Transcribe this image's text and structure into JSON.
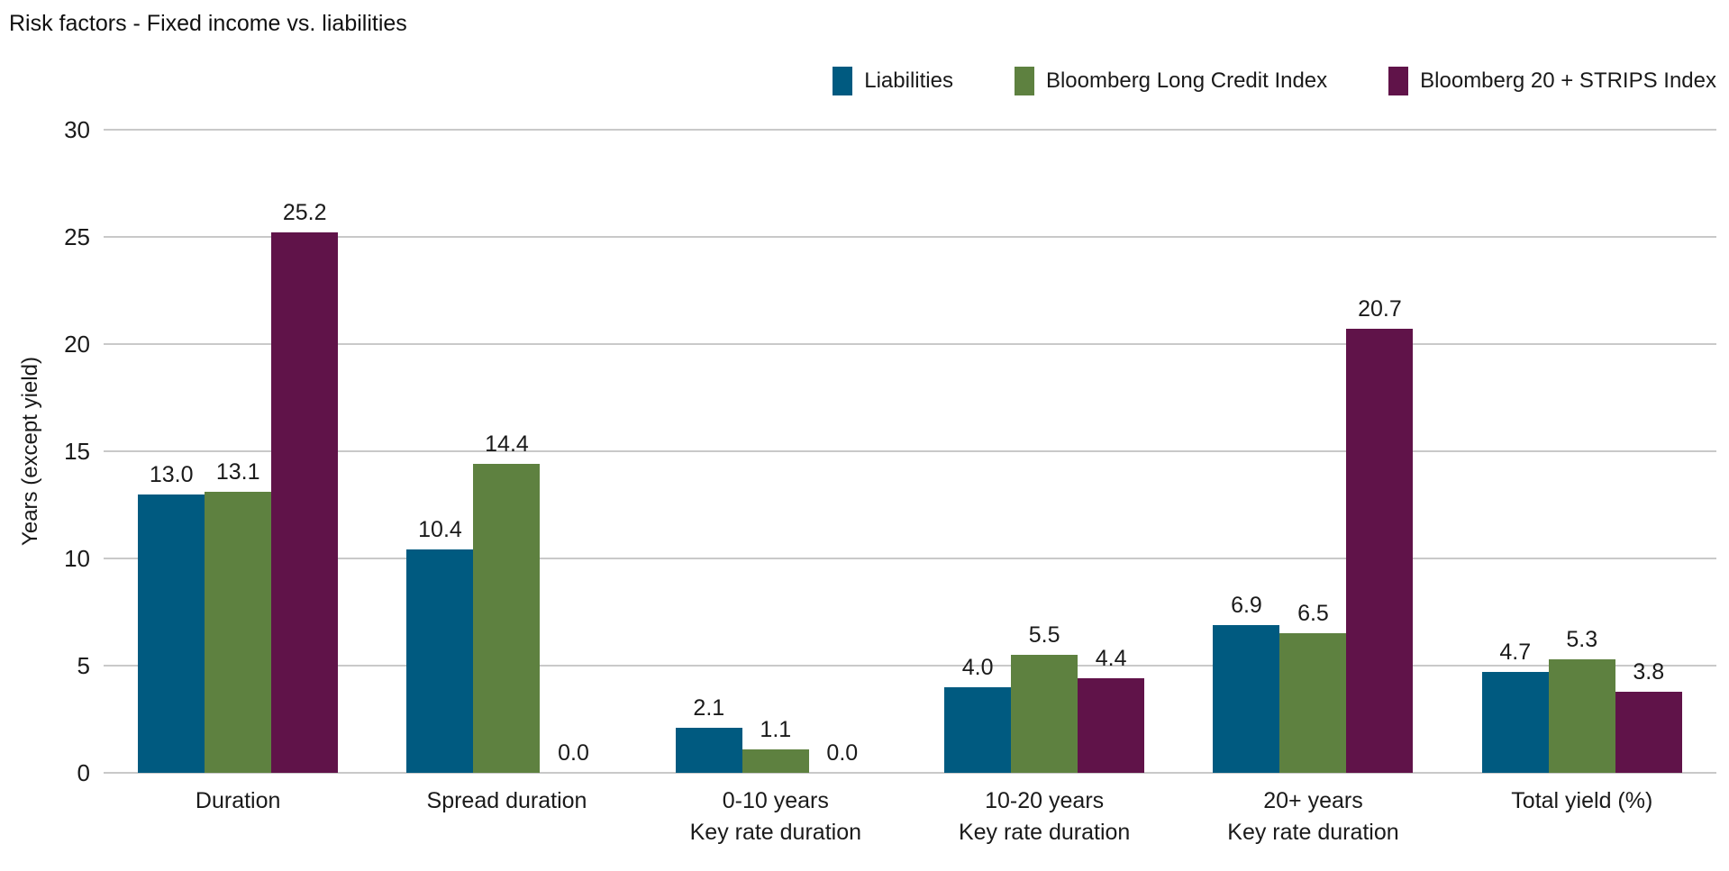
{
  "header": {
    "title": "Risk factors - Fixed income vs. liabilities"
  },
  "chart_data": {
    "type": "bar",
    "title": "Risk factors - Fixed income vs. liabilities",
    "xlabel": "",
    "ylabel": "Years (except yield)",
    "ylim": [
      0,
      30
    ],
    "yticks": [
      0,
      5,
      10,
      15,
      20,
      25,
      30
    ],
    "grid": "horizontal",
    "gridline_color": "#c9c9c9",
    "legend_position": "top-right",
    "value_label_decimals": 1,
    "categories": [
      [
        "Duration"
      ],
      [
        "Spread duration"
      ],
      [
        "0-10 years",
        "Key rate duration"
      ],
      [
        "10-20 years",
        "Key rate duration"
      ],
      [
        "20+ years",
        "Key rate duration"
      ],
      [
        "Total yield (%)"
      ]
    ],
    "series": [
      {
        "name": "Liabilities",
        "color": "#005a80",
        "values": [
          13.0,
          10.4,
          2.1,
          4.0,
          6.9,
          4.7
        ]
      },
      {
        "name": "Bloomberg Long Credit Index",
        "color": "#5e8140",
        "values": [
          13.1,
          14.4,
          1.1,
          5.5,
          6.5,
          5.3
        ]
      },
      {
        "name": "Bloomberg 20 + STRIPS Index",
        "color": "#601349",
        "values": [
          25.2,
          0.0,
          0.0,
          4.4,
          20.7,
          3.8
        ]
      }
    ]
  }
}
